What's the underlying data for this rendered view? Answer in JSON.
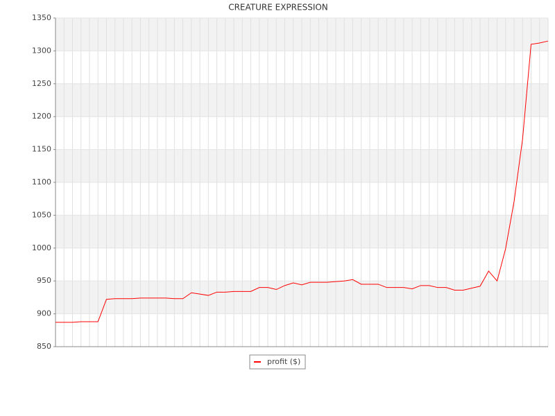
{
  "chart_data": {
    "type": "line",
    "title": "CREATURE EXPRESSION",
    "categories": [
      null,
      null,
      null,
      null,
      null,
      null,
      null,
      null,
      null,
      null,
      null,
      null,
      null,
      null,
      null,
      null,
      null,
      null,
      null,
      null,
      null,
      null,
      null,
      null,
      null,
      null,
      null,
      null,
      null,
      null,
      null,
      null,
      null,
      null,
      null,
      null,
      null,
      null,
      null,
      null,
      null,
      null,
      null,
      null,
      null,
      null,
      null,
      null,
      null,
      null,
      null,
      null,
      null,
      null,
      null,
      null,
      null,
      null,
      null
    ],
    "series": [
      {
        "name": "profit ($)",
        "color": "#ff0000",
        "values": [
          887,
          887,
          887,
          888,
          888,
          888,
          922,
          923,
          923,
          923,
          924,
          924,
          924,
          924,
          923,
          923,
          932,
          930,
          928,
          933,
          933,
          934,
          934,
          934,
          940,
          940,
          937,
          943,
          947,
          944,
          948,
          948,
          948,
          949,
          950,
          952,
          945,
          945,
          945,
          940,
          940,
          940,
          938,
          943,
          943,
          940,
          940,
          936,
          936,
          939,
          942,
          965,
          950,
          999,
          1071,
          1166,
          1310,
          1312,
          1315
        ]
      }
    ],
    "ylim": [
      850,
      1350
    ],
    "yticks": [
      850,
      900,
      950,
      1000,
      1050,
      1100,
      1150,
      1200,
      1250,
      1300,
      1350
    ],
    "grid": true,
    "legend": "bottom"
  }
}
